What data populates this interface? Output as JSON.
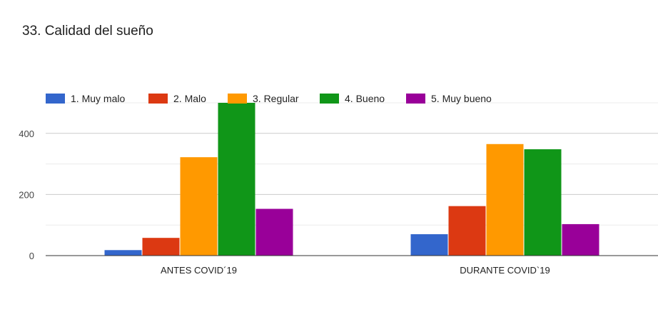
{
  "chart_data": {
    "type": "bar",
    "title": "33. Calidad del sueño",
    "categories": [
      "ANTES COVID´19",
      "DURANTE COVID`19"
    ],
    "series": [
      {
        "name": "1. Muy malo",
        "color": "#3366cc",
        "values": [
          18,
          70
        ]
      },
      {
        "name": "2. Malo",
        "color": "#dc3912",
        "values": [
          58,
          162
        ]
      },
      {
        "name": "3. Regular",
        "color": "#ff9900",
        "values": [
          322,
          365
        ]
      },
      {
        "name": "4. Bueno",
        "color": "#109618",
        "values": [
          500,
          348
        ]
      },
      {
        "name": "5. Muy bueno",
        "color": "#990099",
        "values": [
          153,
          103
        ]
      }
    ],
    "y_ticks": [
      0,
      200,
      400
    ],
    "ylim": [
      0,
      500
    ],
    "grid": true,
    "legend_position": "top-left",
    "xlabel": "",
    "ylabel": ""
  }
}
